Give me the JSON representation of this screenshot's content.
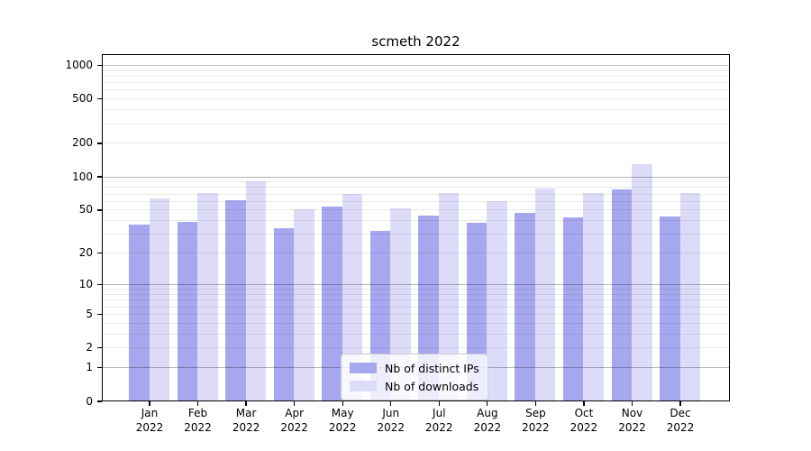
{
  "chart": {
    "title": "scmeth 2022"
  },
  "y_axis": {
    "tick_labels": [
      "1000",
      "500",
      "200",
      "100",
      "50",
      "20",
      "10",
      "5",
      "2",
      "1",
      "0"
    ],
    "tick_values": [
      1000,
      500,
      200,
      100,
      50,
      20,
      10,
      5,
      2,
      1,
      0
    ]
  },
  "x_axis": {
    "labels": [
      {
        "month": "Jan",
        "year": "2022"
      },
      {
        "month": "Feb",
        "year": "2022"
      },
      {
        "month": "Mar",
        "year": "2022"
      },
      {
        "month": "Apr",
        "year": "2022"
      },
      {
        "month": "May",
        "year": "2022"
      },
      {
        "month": "Jun",
        "year": "2022"
      },
      {
        "month": "Jul",
        "year": "2022"
      },
      {
        "month": "Aug",
        "year": "2022"
      },
      {
        "month": "Sep",
        "year": "2022"
      },
      {
        "month": "Oct",
        "year": "2022"
      },
      {
        "month": "Nov",
        "year": "2022"
      },
      {
        "month": "Dec",
        "year": "2022"
      }
    ]
  },
  "chart_data": {
    "type": "bar",
    "title": "scmeth 2022",
    "categories": [
      "Jan 2022",
      "Feb 2022",
      "Mar 2022",
      "Apr 2022",
      "May 2022",
      "Jun 2022",
      "Jul 2022",
      "Aug 2022",
      "Sep 2022",
      "Oct 2022",
      "Nov 2022",
      "Dec 2022"
    ],
    "series": [
      {
        "name": "Nb of distinct IPs",
        "color": "#a7a7ef",
        "values": [
          37,
          39,
          61,
          34,
          54,
          32,
          45,
          38,
          47,
          43,
          77,
          44
        ]
      },
      {
        "name": "Nb of downloads",
        "color": "#dcdcf8",
        "values": [
          64,
          72,
          92,
          51,
          70,
          52,
          71,
          60,
          79,
          71,
          129,
          72
        ]
      }
    ],
    "xlabel": "",
    "ylabel": "",
    "yscale": "log10(value+1)",
    "yticks": [
      0,
      1,
      2,
      5,
      10,
      20,
      50,
      100,
      200,
      500,
      1000
    ],
    "ylim": [
      0,
      1250
    ],
    "grid": "horizontal major and minor, drawn over bars",
    "legend_position": "lower center inside plot"
  },
  "colors": {
    "background": "#ffffff",
    "bar_distinct_ips": "#a7a7ef",
    "bar_downloads": "#dcdcf8",
    "major_gridline": "rgba(0,0,0,0.28)",
    "minor_gridline": "rgba(0,0,0,0.082)",
    "spine": "#000000",
    "legend_border": "#cccccc",
    "legend_background": "rgba(255,255,255,0.8)"
  }
}
